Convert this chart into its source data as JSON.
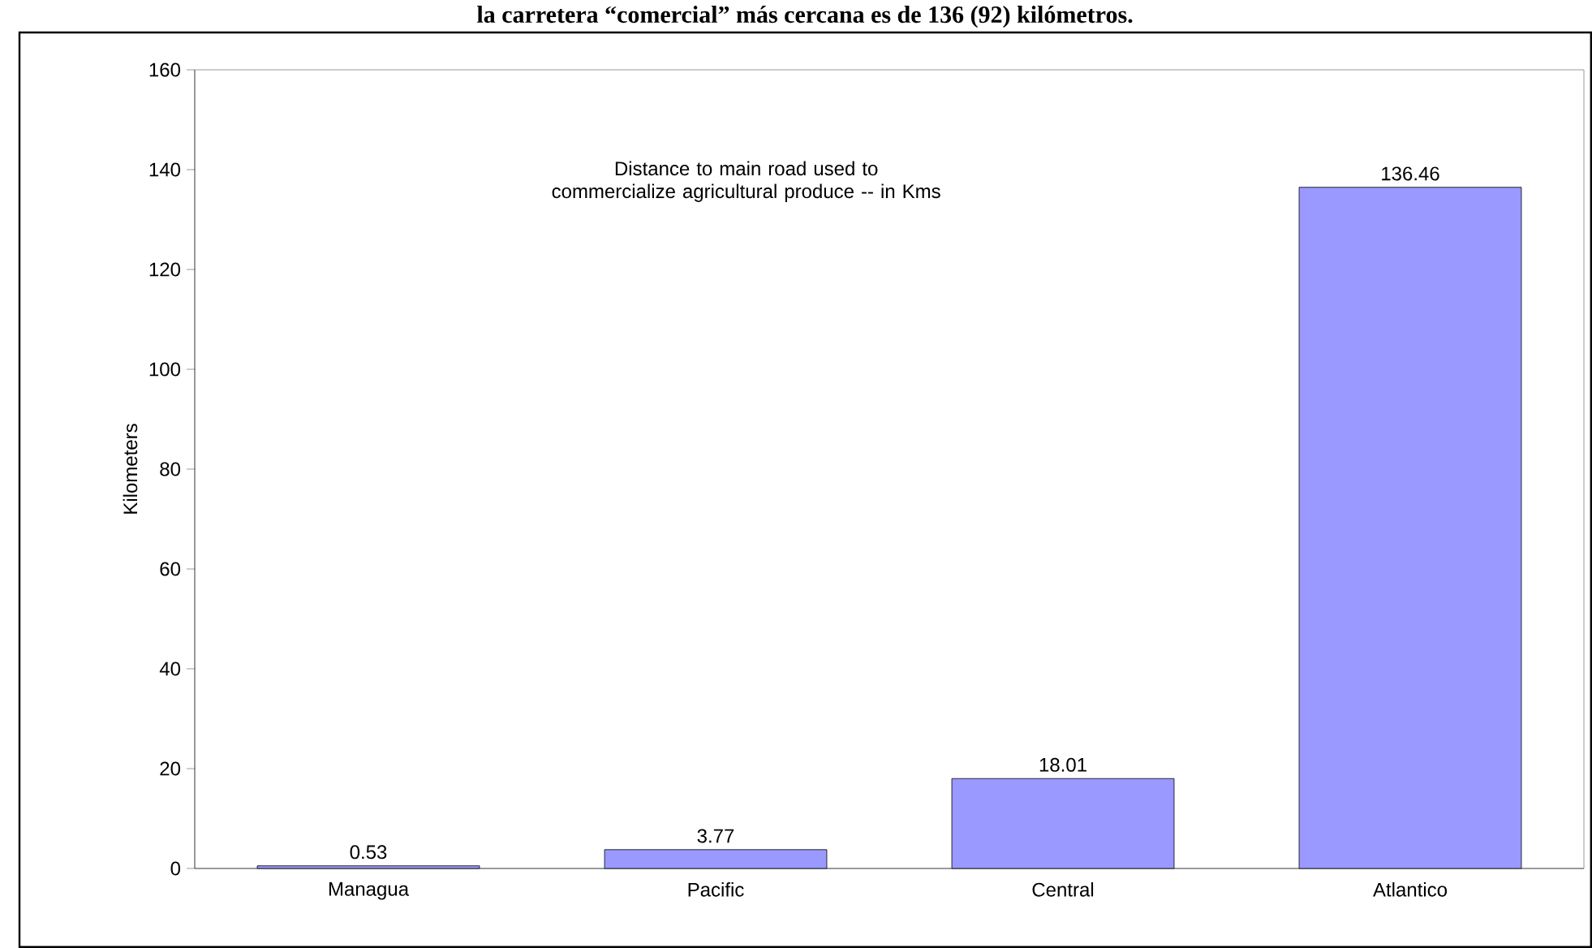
{
  "chart_data": {
    "type": "bar",
    "title": "Distance to main road used to commercialize agricultural produce -- in Kms",
    "ylabel": "Kilometers",
    "annotations": [
      "la carretera “comercial” más cercana es de 136 (92) kilómetros."
    ],
    "categories": [
      "Managua",
      "Pacific",
      "Central",
      "Atlantico"
    ],
    "values": [
      0.53,
      3.77,
      18.01,
      136.46
    ],
    "color": "#9999ff",
    "ylim": [
      0,
      160
    ],
    "yticks": [
      0,
      20,
      40,
      60,
      80,
      100,
      120,
      140,
      160
    ],
    "data_labels": true,
    "grid": false
  }
}
